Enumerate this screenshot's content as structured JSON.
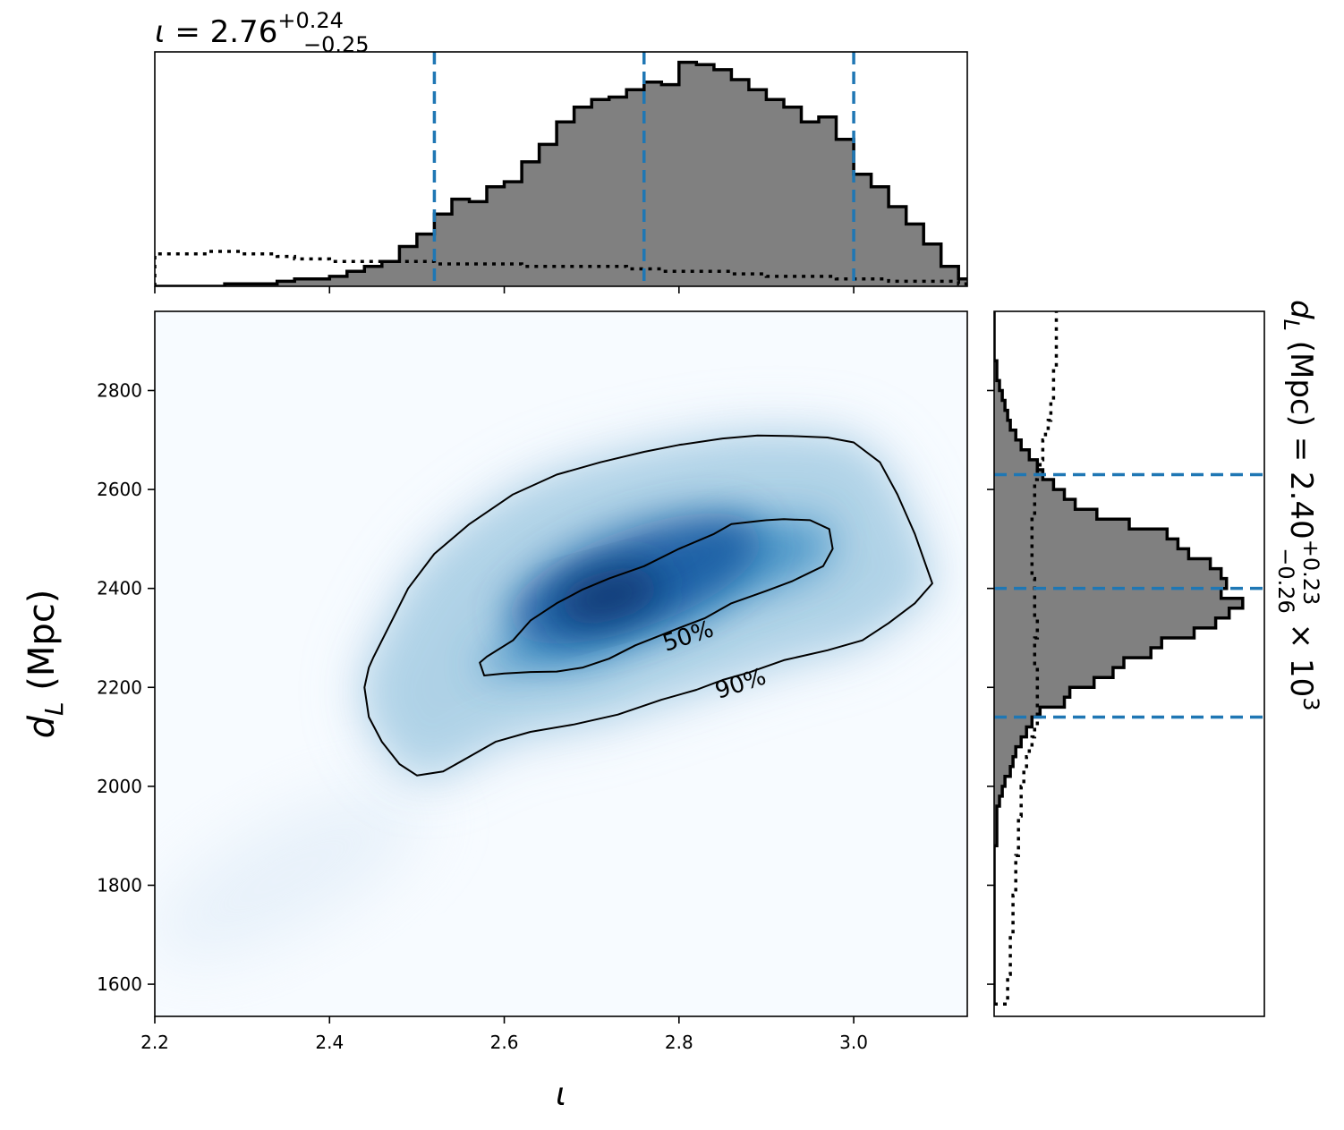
{
  "chart_data": [
    {
      "type": "heatmap",
      "panel": "joint",
      "xlabel": "ι",
      "ylabel_main": "d",
      "ylabel_sub": "L",
      "ylabel_unit": " (Mpc)",
      "xlim": [
        2.2,
        3.13
      ],
      "ylim": [
        1535,
        2960
      ],
      "xticks": [
        2.2,
        2.4,
        2.6,
        2.8,
        3.0
      ],
      "xtick_labels": [
        "2.2",
        "2.4",
        "2.6",
        "2.8",
        "3.0"
      ],
      "yticks": [
        1600,
        1800,
        2000,
        2200,
        2400,
        2600,
        2800
      ],
      "ytick_labels": [
        "1600",
        "1800",
        "2000",
        "2200",
        "2400",
        "2600",
        "2800"
      ],
      "colormap": "Blues",
      "density_peak": {
        "x": 2.72,
        "y": 2385
      },
      "contours": [
        {
          "label": "50%",
          "label_at": [
            2.81,
            2306
          ],
          "label_angle": -18,
          "path": [
            [
              2.58,
              2262
            ],
            [
              2.61,
              2295
            ],
            [
              2.63,
              2335
            ],
            [
              2.66,
              2370
            ],
            [
              2.69,
              2398
            ],
            [
              2.72,
              2420
            ],
            [
              2.76,
              2445
            ],
            [
              2.8,
              2480
            ],
            [
              2.84,
              2510
            ],
            [
              2.86,
              2530
            ],
            [
              2.9,
              2538
            ],
            [
              2.92,
              2540
            ],
            [
              2.95,
              2538
            ],
            [
              2.972,
              2520
            ],
            [
              2.976,
              2480
            ],
            [
              2.965,
              2445
            ],
            [
              2.93,
              2415
            ],
            [
              2.9,
              2395
            ],
            [
              2.86,
              2370
            ],
            [
              2.83,
              2340
            ],
            [
              2.8,
              2320
            ],
            [
              2.78,
              2306
            ],
            [
              2.75,
              2285
            ],
            [
              2.72,
              2258
            ],
            [
              2.69,
              2240
            ],
            [
              2.66,
              2232
            ],
            [
              2.63,
              2231
            ],
            [
              2.6,
              2228
            ],
            [
              2.577,
              2224
            ],
            [
              2.572,
              2250
            ],
            [
              2.58,
              2262
            ]
          ]
        },
        {
          "label": "90%",
          "label_at": [
            2.87,
            2210
          ],
          "label_angle": -18,
          "path": [
            [
              2.45,
              2260
            ],
            [
              2.47,
              2330
            ],
            [
              2.49,
              2400
            ],
            [
              2.52,
              2470
            ],
            [
              2.56,
              2530
            ],
            [
              2.61,
              2590
            ],
            [
              2.66,
              2630
            ],
            [
              2.71,
              2655
            ],
            [
              2.76,
              2676
            ],
            [
              2.8,
              2690
            ],
            [
              2.85,
              2703
            ],
            [
              2.89,
              2709
            ],
            [
              2.93,
              2708
            ],
            [
              2.97,
              2705
            ],
            [
              3.0,
              2695
            ],
            [
              3.03,
              2655
            ],
            [
              3.05,
              2590
            ],
            [
              3.07,
              2510
            ],
            [
              3.09,
              2410
            ],
            [
              3.07,
              2370
            ],
            [
              3.04,
              2330
            ],
            [
              3.01,
              2295
            ],
            [
              2.97,
              2275
            ],
            [
              2.92,
              2255
            ],
            [
              2.88,
              2230
            ],
            [
              2.85,
              2215
            ],
            [
              2.82,
              2195
            ],
            [
              2.78,
              2175
            ],
            [
              2.73,
              2145
            ],
            [
              2.68,
              2125
            ],
            [
              2.63,
              2110
            ],
            [
              2.59,
              2090
            ],
            [
              2.56,
              2060
            ],
            [
              2.53,
              2030
            ],
            [
              2.5,
              2022
            ],
            [
              2.48,
              2045
            ],
            [
              2.46,
              2090
            ],
            [
              2.445,
              2140
            ],
            [
              2.44,
              2200
            ],
            [
              2.445,
              2240
            ],
            [
              2.45,
              2260
            ]
          ]
        }
      ]
    },
    {
      "type": "area",
      "panel": "marginal-x",
      "title_symbol": "ι",
      "title_eq": " = 2.76",
      "title_sup": "+0.24",
      "title_sub": "−0.25",
      "median": 2.76,
      "lower": 2.52,
      "upper": 3.0,
      "xlim": [
        2.2,
        3.13
      ],
      "bins": [
        2.2,
        2.22,
        2.24,
        2.26,
        2.28,
        2.3,
        2.32,
        2.34,
        2.36,
        2.38,
        2.4,
        2.42,
        2.44,
        2.46,
        2.48,
        2.5,
        2.52,
        2.54,
        2.56,
        2.58,
        2.6,
        2.62,
        2.64,
        2.66,
        2.68,
        2.7,
        2.72,
        2.74,
        2.76,
        2.78,
        2.8,
        2.82,
        2.84,
        2.86,
        2.88,
        2.9,
        2.92,
        2.94,
        2.96,
        2.98,
        3.0,
        3.02,
        3.04,
        3.06,
        3.08,
        3.1,
        3.12,
        3.13
      ],
      "posterior_counts": [
        0,
        0,
        0,
        0,
        1,
        1,
        1,
        2,
        3,
        3,
        4,
        6,
        8,
        10,
        16,
        21,
        29,
        35,
        34,
        40,
        42,
        50,
        57,
        66,
        72,
        75,
        76,
        79,
        82,
        81,
        90,
        89,
        87,
        83,
        79,
        75,
        72,
        66,
        68,
        59,
        45,
        40,
        32,
        25,
        17,
        8,
        3
      ],
      "prior_counts": [
        13,
        13,
        13,
        14,
        14,
        13,
        13,
        12,
        11,
        11,
        10,
        10,
        10,
        10,
        10,
        10,
        9,
        9,
        9,
        9,
        9,
        8,
        8,
        8,
        8,
        8,
        8,
        7,
        7,
        6,
        6,
        6,
        6,
        5,
        5,
        4,
        4,
        4,
        4,
        3,
        3,
        3,
        2,
        2,
        2,
        2,
        1
      ],
      "ymax": 92
    },
    {
      "type": "area",
      "panel": "marginal-y",
      "title_main": "d",
      "title_sub": "L",
      "title_eq": " (Mpc) = 2.40",
      "title_sup": "+0.23",
      "title_subscr": "−0.26",
      "title_tail": " × 10",
      "title_pow": "3",
      "median": 2400,
      "lower": 2140,
      "upper": 2630,
      "ylim": [
        1535,
        2960
      ],
      "bins": [
        1560,
        1580,
        1600,
        1620,
        1640,
        1660,
        1680,
        1700,
        1720,
        1740,
        1760,
        1780,
        1800,
        1820,
        1840,
        1860,
        1880,
        1900,
        1920,
        1940,
        1960,
        1980,
        2000,
        2020,
        2040,
        2060,
        2080,
        2100,
        2120,
        2140,
        2160,
        2180,
        2200,
        2220,
        2240,
        2260,
        2280,
        2300,
        2320,
        2340,
        2360,
        2380,
        2400,
        2420,
        2440,
        2460,
        2480,
        2500,
        2520,
        2540,
        2560,
        2580,
        2600,
        2620,
        2640,
        2660,
        2680,
        2700,
        2720,
        2740,
        2760,
        2780,
        2800,
        2820,
        2840,
        2860,
        2880,
        2900,
        2920,
        2940,
        2960
      ],
      "posterior_counts": [
        0,
        0,
        0,
        0,
        0,
        0,
        0,
        0,
        0,
        0,
        0,
        0,
        0,
        0,
        0,
        0,
        1,
        1,
        1,
        1,
        2,
        3,
        4,
        6,
        7,
        8,
        10,
        12,
        14,
        17,
        26,
        28,
        37,
        44,
        48,
        58,
        62,
        74,
        82,
        87,
        92,
        84,
        86,
        84,
        80,
        72,
        68,
        64,
        50,
        38,
        30,
        26,
        22,
        18,
        16,
        13,
        10,
        8,
        6,
        5,
        4,
        3,
        2,
        1,
        1,
        0,
        0,
        0,
        0,
        0,
        0
      ],
      "prior_counts": [
        5,
        5,
        5,
        6,
        6,
        6,
        6,
        7,
        7,
        7,
        7,
        8,
        8,
        8,
        8,
        9,
        9,
        9,
        9,
        10,
        10,
        10,
        11,
        11,
        12,
        13,
        14,
        15,
        16,
        16,
        16,
        16,
        16,
        16,
        15,
        15,
        15,
        16,
        16,
        15,
        15,
        15,
        15,
        14,
        14,
        14,
        14,
        14,
        14,
        15,
        15,
        15,
        15,
        16,
        17,
        18,
        18,
        19,
        20,
        21,
        21,
        22,
        22,
        22,
        23,
        23,
        23,
        23,
        23,
        23,
        23
      ],
      "xmax": 100
    }
  ],
  "colors": {
    "hist_fill": "#808080",
    "hist_edge": "#000000",
    "quantile_line": "#1f77b4",
    "prior_line": "#000000",
    "contour_line": "#000000",
    "cmap_low": "#f7fbff",
    "cmap_high": "#08306b"
  }
}
